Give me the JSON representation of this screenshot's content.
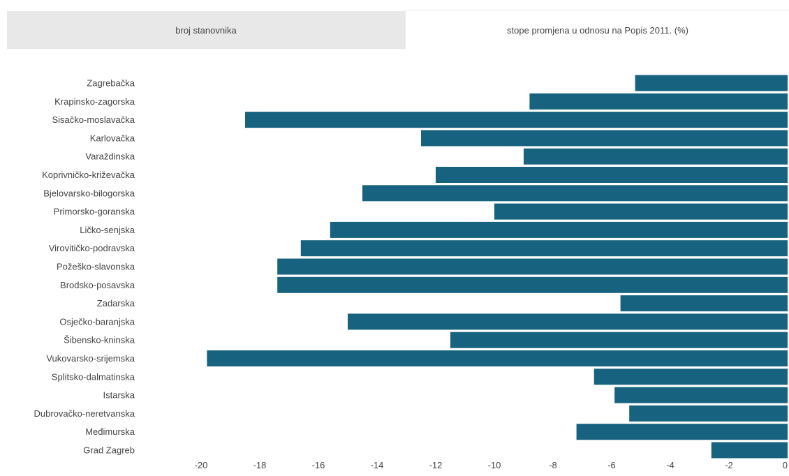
{
  "tabs": [
    {
      "label": "broj stanovnika",
      "active": false
    },
    {
      "label": "stope promjena u odnosu na Popis 2011. (%)",
      "active": true
    }
  ],
  "colors": {
    "bar": "#17637f",
    "tab_inactive": "#e8e8e8",
    "text": "#444444"
  },
  "chart_data": {
    "type": "bar",
    "orientation": "horizontal",
    "title": "",
    "xlabel": "",
    "ylabel": "",
    "xlim": [
      -20,
      0
    ],
    "xticks": [
      -20,
      -18,
      -16,
      -14,
      -12,
      -10,
      -8,
      -6,
      -4,
      -2,
      0
    ],
    "grid": false,
    "legend": "none",
    "categories": [
      "Zagrebačka",
      "Krapinsko-zagorska",
      "Sisačko-moslavačka",
      "Karlovačka",
      "Varaždinska",
      "Koprivničko-križevačka",
      "Bjelovarsko-bilogorska",
      "Primorsko-goranska",
      "Ličko-senjska",
      "Virovitičko-podravska",
      "Požeško-slavonska",
      "Brodsko-posavska",
      "Zadarska",
      "Osječko-baranjska",
      "Šibensko-kninska",
      "Vukovarsko-srijemska",
      "Splitsko-dalmatinska",
      "Istarska",
      "Dubrovačko-neretvanska",
      "Međimurska",
      "Grad Zagreb"
    ],
    "values": [
      -5.2,
      -8.8,
      -18.5,
      -12.5,
      -9.0,
      -12.0,
      -14.5,
      -10.0,
      -15.6,
      -16.6,
      -17.4,
      -17.4,
      -5.7,
      -15.0,
      -11.5,
      -19.8,
      -6.6,
      -5.9,
      -5.4,
      -7.2,
      -2.6
    ]
  }
}
